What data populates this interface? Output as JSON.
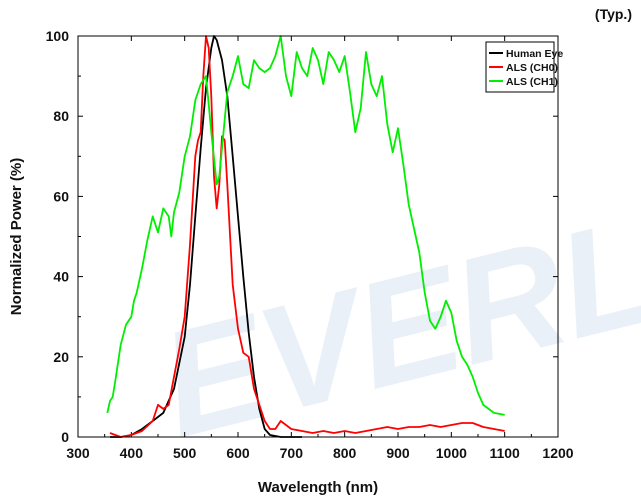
{
  "chart_data": {
    "type": "line",
    "title": "",
    "annotation": "(Typ.)",
    "watermark": "EVERL",
    "xlabel": "Wavelength (nm)",
    "ylabel": "Normalized Power (%)",
    "xlim": [
      300,
      1200
    ],
    "ylim": [
      0,
      100
    ],
    "x_ticks": [
      300,
      400,
      500,
      600,
      700,
      800,
      900,
      1000,
      1100,
      1200
    ],
    "y_ticks": [
      0,
      20,
      40,
      60,
      80,
      100
    ],
    "grid": false,
    "legend_position": "top-right",
    "series": [
      {
        "name": "Human Eye",
        "color": "#000000",
        "points": [
          [
            360,
            0
          ],
          [
            380,
            0
          ],
          [
            400,
            0.5
          ],
          [
            420,
            2
          ],
          [
            440,
            4
          ],
          [
            460,
            6
          ],
          [
            480,
            12
          ],
          [
            500,
            25
          ],
          [
            510,
            38
          ],
          [
            520,
            55
          ],
          [
            530,
            72
          ],
          [
            540,
            87
          ],
          [
            550,
            97
          ],
          [
            555,
            100
          ],
          [
            560,
            99
          ],
          [
            570,
            94
          ],
          [
            580,
            85
          ],
          [
            590,
            70
          ],
          [
            600,
            55
          ],
          [
            610,
            40
          ],
          [
            620,
            26
          ],
          [
            630,
            15
          ],
          [
            640,
            7
          ],
          [
            650,
            2
          ],
          [
            660,
            0.5
          ],
          [
            680,
            0
          ],
          [
            700,
            0
          ],
          [
            720,
            0
          ]
        ]
      },
      {
        "name": "ALS (CH0)",
        "color": "#ff0000",
        "points": [
          [
            360,
            1
          ],
          [
            370,
            0.5
          ],
          [
            380,
            0
          ],
          [
            400,
            0.5
          ],
          [
            420,
            1.5
          ],
          [
            440,
            4
          ],
          [
            450,
            8
          ],
          [
            460,
            7
          ],
          [
            470,
            8
          ],
          [
            480,
            15
          ],
          [
            490,
            22
          ],
          [
            500,
            30
          ],
          [
            510,
            48
          ],
          [
            520,
            70
          ],
          [
            525,
            74
          ],
          [
            530,
            76
          ],
          [
            535,
            90
          ],
          [
            540,
            100
          ],
          [
            545,
            97
          ],
          [
            550,
            85
          ],
          [
            555,
            65
          ],
          [
            560,
            57
          ],
          [
            565,
            63
          ],
          [
            570,
            75
          ],
          [
            575,
            74
          ],
          [
            580,
            63
          ],
          [
            590,
            38
          ],
          [
            600,
            27
          ],
          [
            610,
            21
          ],
          [
            620,
            20
          ],
          [
            630,
            12
          ],
          [
            640,
            8
          ],
          [
            650,
            4
          ],
          [
            660,
            2
          ],
          [
            670,
            2
          ],
          [
            680,
            4
          ],
          [
            690,
            3
          ],
          [
            700,
            2
          ],
          [
            720,
            1.5
          ],
          [
            740,
            1
          ],
          [
            760,
            1.5
          ],
          [
            780,
            1
          ],
          [
            800,
            1.5
          ],
          [
            820,
            1
          ],
          [
            840,
            1.5
          ],
          [
            860,
            2
          ],
          [
            880,
            2.5
          ],
          [
            900,
            2
          ],
          [
            920,
            2.5
          ],
          [
            940,
            2.5
          ],
          [
            960,
            3
          ],
          [
            980,
            2.5
          ],
          [
            1000,
            3
          ],
          [
            1020,
            3.5
          ],
          [
            1040,
            3.5
          ],
          [
            1060,
            2.5
          ],
          [
            1080,
            2
          ],
          [
            1100,
            1.5
          ]
        ]
      },
      {
        "name": "ALS (CH1)",
        "color": "#00ee00",
        "points": [
          [
            355,
            6
          ],
          [
            360,
            9
          ],
          [
            365,
            10
          ],
          [
            370,
            14
          ],
          [
            380,
            23
          ],
          [
            390,
            28
          ],
          [
            400,
            30
          ],
          [
            405,
            34
          ],
          [
            410,
            36
          ],
          [
            420,
            42
          ],
          [
            430,
            49
          ],
          [
            440,
            55
          ],
          [
            450,
            51
          ],
          [
            460,
            57
          ],
          [
            470,
            55
          ],
          [
            475,
            50
          ],
          [
            480,
            56
          ],
          [
            490,
            61
          ],
          [
            500,
            70
          ],
          [
            510,
            75
          ],
          [
            520,
            84
          ],
          [
            530,
            88
          ],
          [
            540,
            90
          ],
          [
            545,
            83
          ],
          [
            550,
            76
          ],
          [
            560,
            63
          ],
          [
            565,
            65
          ],
          [
            570,
            72
          ],
          [
            580,
            86
          ],
          [
            590,
            90
          ],
          [
            600,
            95
          ],
          [
            610,
            88
          ],
          [
            620,
            87
          ],
          [
            630,
            94
          ],
          [
            640,
            92
          ],
          [
            650,
            91
          ],
          [
            660,
            92
          ],
          [
            670,
            95
          ],
          [
            680,
            100
          ],
          [
            690,
            90
          ],
          [
            700,
            85
          ],
          [
            710,
            96
          ],
          [
            720,
            92
          ],
          [
            730,
            90
          ],
          [
            740,
            97
          ],
          [
            750,
            94
          ],
          [
            760,
            88
          ],
          [
            770,
            96
          ],
          [
            780,
            94
          ],
          [
            790,
            91
          ],
          [
            800,
            95
          ],
          [
            810,
            86
          ],
          [
            820,
            76
          ],
          [
            830,
            82
          ],
          [
            840,
            96
          ],
          [
            850,
            88
          ],
          [
            860,
            85
          ],
          [
            870,
            90
          ],
          [
            880,
            78
          ],
          [
            890,
            71
          ],
          [
            900,
            77
          ],
          [
            910,
            68
          ],
          [
            920,
            58
          ],
          [
            930,
            52
          ],
          [
            940,
            46
          ],
          [
            950,
            36
          ],
          [
            960,
            29
          ],
          [
            970,
            27
          ],
          [
            980,
            30
          ],
          [
            990,
            34
          ],
          [
            1000,
            31
          ],
          [
            1010,
            24
          ],
          [
            1020,
            20
          ],
          [
            1030,
            18
          ],
          [
            1040,
            15
          ],
          [
            1050,
            11
          ],
          [
            1060,
            8
          ],
          [
            1080,
            6
          ],
          [
            1100,
            5.5
          ]
        ]
      }
    ]
  }
}
